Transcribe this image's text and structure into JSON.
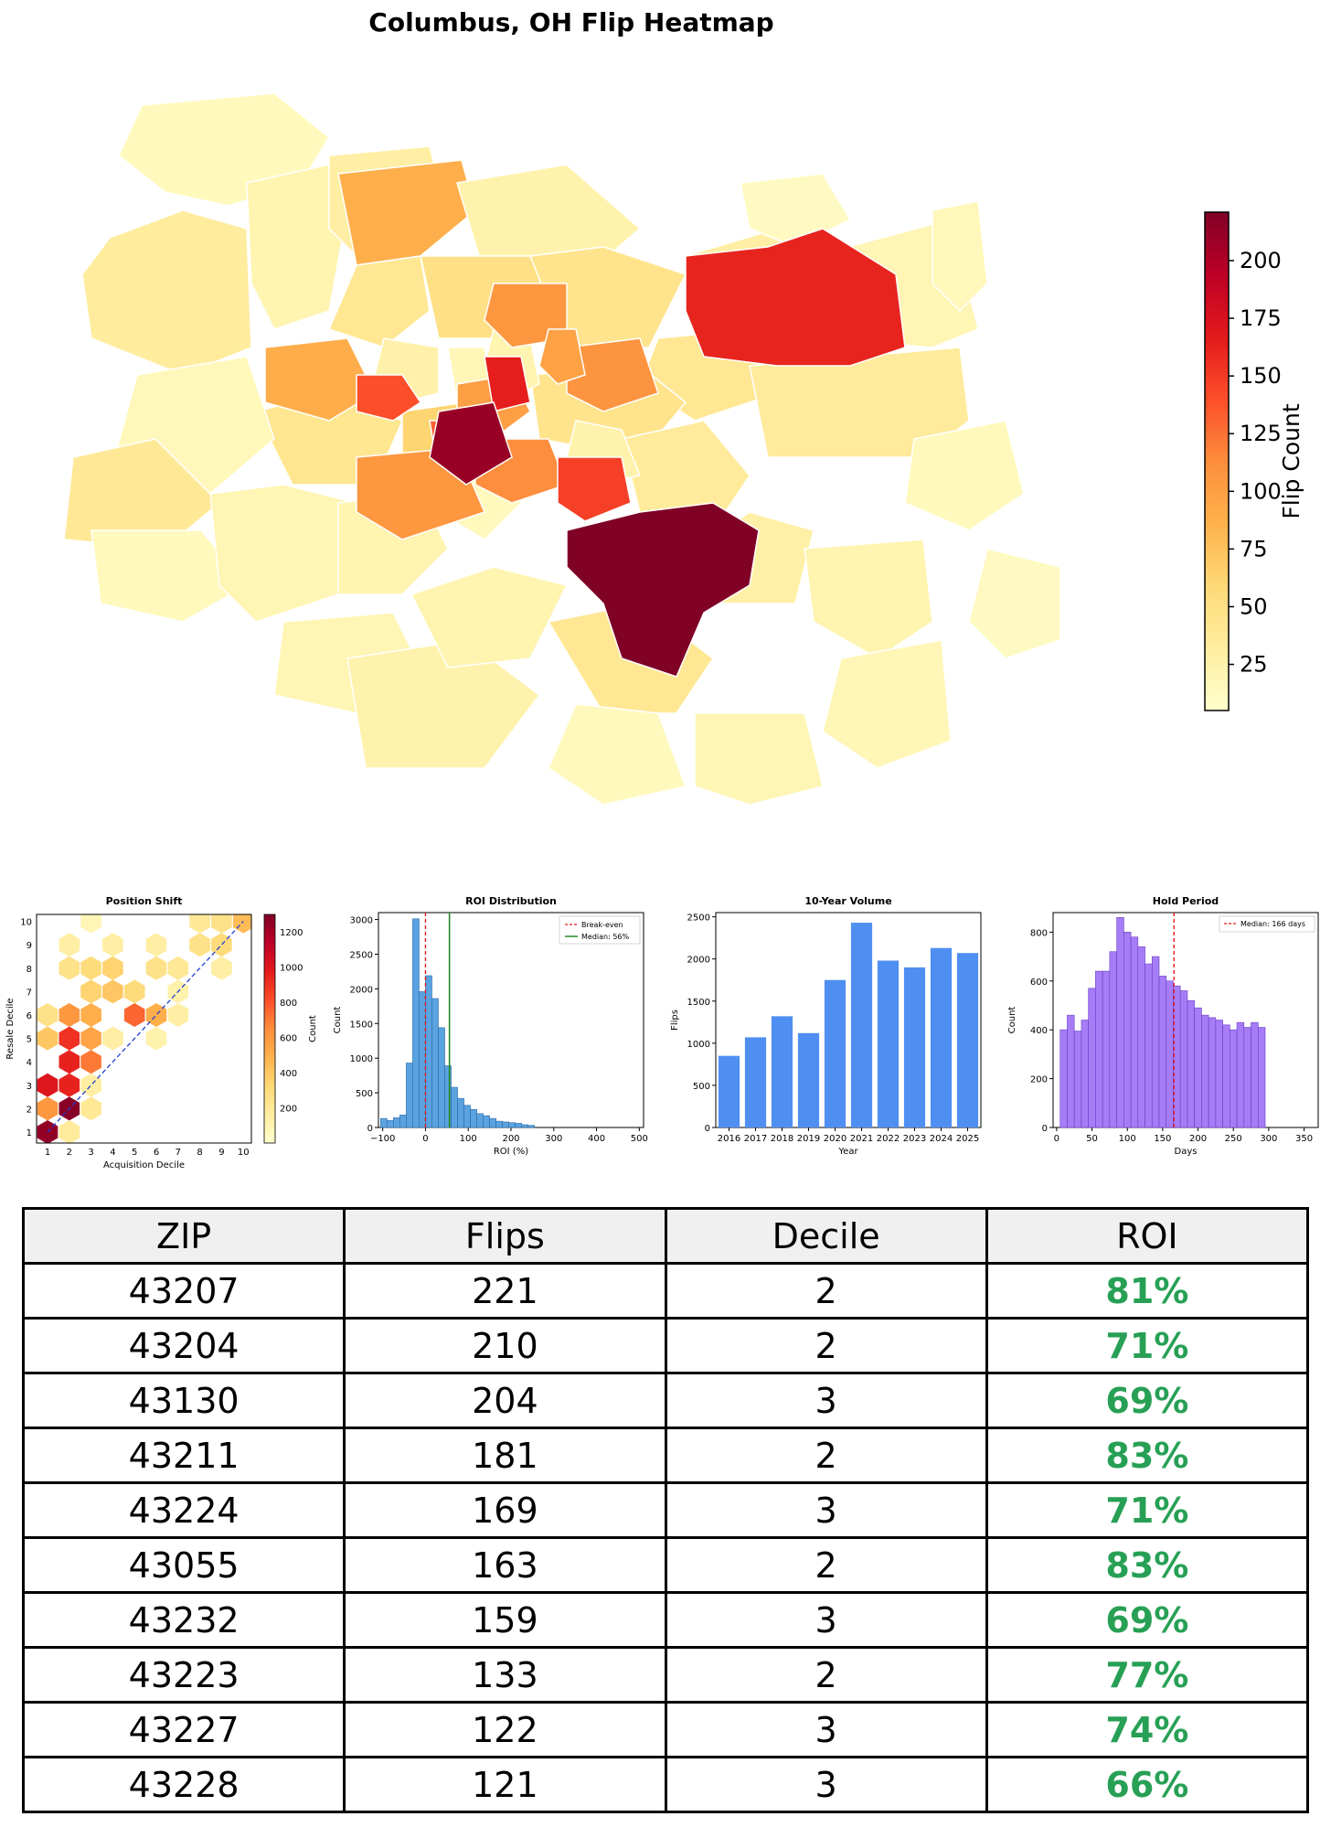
{
  "title": "Columbus, OH Flip Heatmap",
  "colors": {
    "ylorrd": [
      "#ffffcc",
      "#ffeda0",
      "#fed976",
      "#feb24c",
      "#fd8d3c",
      "#fc4e2a",
      "#e31a1c",
      "#bd0026",
      "#800026"
    ],
    "roi_bar": "#5aa3e0",
    "volume_bar": "#4f8ff2",
    "hold_bar": "#a67cf7",
    "breakeven": "#e31a1c",
    "median": "#228b22",
    "diag": "#1f3fd0",
    "roi_text": "#27a055"
  },
  "colorbar": {
    "label": "Flip Count",
    "ticks": [
      "200",
      "175",
      "150",
      "125",
      "100",
      "75",
      "50",
      "25"
    ],
    "range": [
      5,
      221
    ]
  },
  "chart_data": [
    {
      "type": "map",
      "title": "Columbus, OH Flip Heatmap",
      "metric": "Flip Count",
      "value_range": [
        5,
        221
      ]
    },
    {
      "type": "hexbin",
      "title": "Position Shift",
      "xlabel": "Acquisition Decile",
      "ylabel": "Resale Decile",
      "xticks": [
        "1",
        "2",
        "3",
        "4",
        "5",
        "6",
        "7",
        "8",
        "9",
        "10"
      ],
      "yticks": [
        "1",
        "2",
        "3",
        "4",
        "5",
        "6",
        "7",
        "8",
        "9",
        "10"
      ],
      "colorbar_label": "Count",
      "colorbar_ticks": [
        "1200",
        "1000",
        "800",
        "600",
        "400",
        "200"
      ],
      "cells": [
        {
          "x": 1,
          "y": 1,
          "count": 1250
        },
        {
          "x": 2,
          "y": 2,
          "count": 1280
        },
        {
          "x": 1,
          "y": 3,
          "count": 1000
        },
        {
          "x": 2,
          "y": 3,
          "count": 950
        },
        {
          "x": 2,
          "y": 4,
          "count": 950
        },
        {
          "x": 3,
          "y": 4,
          "count": 700
        },
        {
          "x": 1,
          "y": 5,
          "count": 400
        },
        {
          "x": 2,
          "y": 5,
          "count": 900
        },
        {
          "x": 3,
          "y": 5,
          "count": 550
        },
        {
          "x": 1,
          "y": 6,
          "count": 250
        },
        {
          "x": 2,
          "y": 6,
          "count": 600
        },
        {
          "x": 3,
          "y": 6,
          "count": 500
        },
        {
          "x": 5,
          "y": 6,
          "count": 750
        },
        {
          "x": 6,
          "y": 6,
          "count": 500
        },
        {
          "x": 3,
          "y": 7,
          "count": 350
        },
        {
          "x": 4,
          "y": 7,
          "count": 400
        },
        {
          "x": 5,
          "y": 7,
          "count": 300
        },
        {
          "x": 2,
          "y": 8,
          "count": 250
        },
        {
          "x": 3,
          "y": 8,
          "count": 300
        },
        {
          "x": 4,
          "y": 8,
          "count": 350
        },
        {
          "x": 6,
          "y": 8,
          "count": 250
        },
        {
          "x": 7,
          "y": 8,
          "count": 200
        },
        {
          "x": 2,
          "y": 9,
          "count": 150
        },
        {
          "x": 4,
          "y": 9,
          "count": 150
        },
        {
          "x": 6,
          "y": 9,
          "count": 150
        },
        {
          "x": 8,
          "y": 9,
          "count": 250
        },
        {
          "x": 9,
          "y": 9,
          "count": 300
        },
        {
          "x": 3,
          "y": 10,
          "count": 80
        },
        {
          "x": 8,
          "y": 10,
          "count": 200
        },
        {
          "x": 9,
          "y": 10,
          "count": 250
        },
        {
          "x": 10,
          "y": 10,
          "count": 450
        },
        {
          "x": 1,
          "y": 2,
          "count": 600
        },
        {
          "x": 3,
          "y": 2,
          "count": 200
        },
        {
          "x": 2,
          "y": 1,
          "count": 180
        },
        {
          "x": 3,
          "y": 3,
          "count": 150
        },
        {
          "x": 4,
          "y": 5,
          "count": 150
        },
        {
          "x": 6,
          "y": 5,
          "count": 120
        },
        {
          "x": 7,
          "y": 6,
          "count": 150
        },
        {
          "x": 7,
          "y": 7,
          "count": 120
        },
        {
          "x": 9,
          "y": 8,
          "count": 150
        }
      ]
    },
    {
      "type": "bar",
      "title": "ROI Distribution",
      "xlabel": "ROI (%)",
      "ylabel": "Count",
      "xlim": [
        -110,
        510
      ],
      "ylim": [
        0,
        3100
      ],
      "xticks": [
        "−100",
        "0",
        "100",
        "200",
        "300",
        "400",
        "500"
      ],
      "yticks": [
        "0",
        "500",
        "1000",
        "1500",
        "2000",
        "2500",
        "3000"
      ],
      "bin_width": 15,
      "bin_start": -105,
      "values": [
        130,
        100,
        140,
        180,
        930,
        3010,
        1960,
        2190,
        1860,
        1440,
        890,
        580,
        420,
        320,
        260,
        200,
        170,
        130,
        90,
        80,
        70,
        60,
        40,
        30
      ],
      "legend": [
        "Break-even",
        "Median: 56%"
      ],
      "breakeven": 0,
      "median": 56
    },
    {
      "type": "bar",
      "title": "10-Year Volume",
      "xlabel": "Year",
      "ylabel": "Flips",
      "ylim": [
        0,
        2550
      ],
      "categories": [
        "2016",
        "2017",
        "2018",
        "2019",
        "2020",
        "2021",
        "2022",
        "2023",
        "2024",
        "2025"
      ],
      "yticks": [
        "0",
        "500",
        "1000",
        "1500",
        "2000",
        "2500"
      ],
      "values": [
        850,
        1070,
        1320,
        1120,
        1750,
        2430,
        1980,
        1900,
        2130,
        2070
      ]
    },
    {
      "type": "bar",
      "title": "Hold Period",
      "xlabel": "Days",
      "ylabel": "Count",
      "xlim": [
        -5,
        370
      ],
      "ylim": [
        0,
        880
      ],
      "xticks": [
        "0",
        "50",
        "100",
        "150",
        "200",
        "250",
        "300",
        "350"
      ],
      "yticks": [
        "0",
        "200",
        "400",
        "600",
        "800"
      ],
      "bin_width": 10,
      "bin_start": 5,
      "values": [
        400,
        460,
        395,
        440,
        570,
        640,
        640,
        720,
        860,
        800,
        780,
        740,
        670,
        700,
        620,
        600,
        580,
        560,
        520,
        490,
        460,
        450,
        440,
        420,
        400,
        430,
        410,
        430,
        410
      ],
      "legend": [
        "Median: 166 days"
      ],
      "median": 166
    },
    {
      "type": "table",
      "columns": [
        "ZIP",
        "Flips",
        "Decile",
        "ROI"
      ],
      "rows": [
        [
          "43207",
          "221",
          "2",
          "81%"
        ],
        [
          "43204",
          "210",
          "2",
          "71%"
        ],
        [
          "43130",
          "204",
          "3",
          "69%"
        ],
        [
          "43211",
          "181",
          "2",
          "83%"
        ],
        [
          "43224",
          "169",
          "3",
          "71%"
        ],
        [
          "43055",
          "163",
          "2",
          "83%"
        ],
        [
          "43232",
          "159",
          "3",
          "69%"
        ],
        [
          "43223",
          "133",
          "2",
          "77%"
        ],
        [
          "43227",
          "122",
          "3",
          "74%"
        ],
        [
          "43228",
          "121",
          "3",
          "66%"
        ]
      ]
    }
  ]
}
